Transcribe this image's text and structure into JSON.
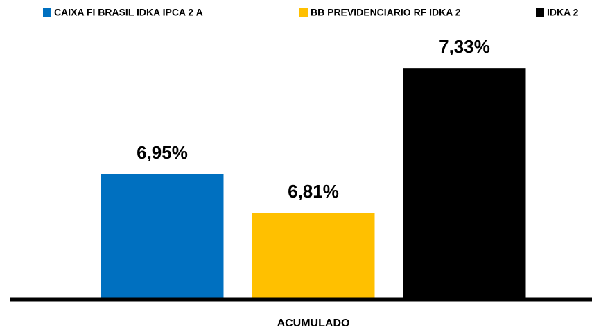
{
  "chart_data": {
    "type": "bar",
    "categories": [
      "ACUMULADO"
    ],
    "series": [
      {
        "name": "CAIXA FI BRASIL IDKA IPCA 2 A",
        "color": "#0070c0",
        "values": [
          6.95
        ],
        "value_labels": [
          "6,95%"
        ]
      },
      {
        "name": "BB PREVIDENCIARIO RF IDKA 2",
        "color": "#ffc000",
        "values": [
          6.81
        ],
        "value_labels": [
          "6,81%"
        ]
      },
      {
        "name": "IDKA 2",
        "color": "#000000",
        "values": [
          7.33
        ],
        "value_labels": [
          "7,33%"
        ]
      }
    ],
    "ylim": [
      6.5,
      7.4
    ],
    "legend": "top"
  }
}
